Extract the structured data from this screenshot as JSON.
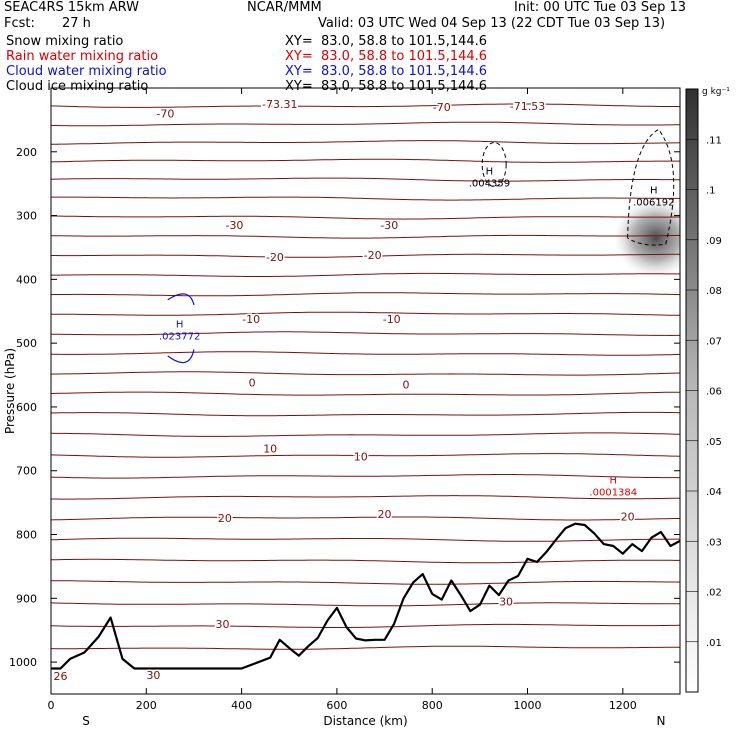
{
  "header": {
    "model": "SEAC4RS 15km ARW",
    "org": "NCAR/MMM",
    "init": "Init: 00 UTC Tue 03 Sep 13",
    "fcst_label": "Fcst:",
    "fcst_value": "27 h",
    "valid": "Valid: 03 UTC Wed 04 Sep 13 (22 CDT Tue 03 Sep 13)",
    "fields": [
      {
        "label": "Snow mixing ratio",
        "xy": "XY=  83.0, 58.8 to 101.5,144.6",
        "color": "#000000"
      },
      {
        "label": "Rain water mixing ratio",
        "xy": "XY=  83.0, 58.8 to 101.5,144.6",
        "color": "#e00000"
      },
      {
        "label": "Cloud water mixing ratio",
        "xy": "XY=  83.0, 58.8 to 101.5,144.6",
        "color": "#1010d0"
      },
      {
        "label": "Cloud ice mixing ratio",
        "xy": "XY=  83.0, 58.8 to 101.5,144.6",
        "color": "#000000"
      }
    ]
  },
  "chart_data": {
    "type": "cross-section contour",
    "xlabel": "Distance (km)",
    "ylabel": "Pressure (hPa)",
    "xlim": [
      0,
      1320
    ],
    "ylim": [
      1050,
      100
    ],
    "x_ticks": [
      0,
      200,
      400,
      600,
      800,
      1000,
      1200
    ],
    "y_ticks": [
      1000,
      900,
      800,
      700,
      600,
      500,
      400,
      300,
      200
    ],
    "x_end_labels": {
      "left": "S",
      "right": "N"
    },
    "colorbar": {
      "unit": "g kg⁻¹",
      "ticks": [
        ".01",
        ".02",
        ".03",
        ".04",
        ".05",
        ".06",
        ".07",
        ".08",
        ".09",
        ".1",
        ".11"
      ]
    },
    "contour_color": "#7a1010",
    "terrain_color": "#000000",
    "temperature_labels": [
      {
        "text": "-70",
        "x": 240,
        "p": 140
      },
      {
        "text": "-73.31",
        "x": 480,
        "p": 125
      },
      {
        "text": "-70",
        "x": 820,
        "p": 130
      },
      {
        "text": "-71.53",
        "x": 1000,
        "p": 128
      },
      {
        "text": "-30",
        "x": 385,
        "p": 315
      },
      {
        "text": "-30",
        "x": 710,
        "p": 315
      },
      {
        "text": "-20",
        "x": 470,
        "p": 365
      },
      {
        "text": "-20",
        "x": 675,
        "p": 362
      },
      {
        "text": "-10",
        "x": 420,
        "p": 462
      },
      {
        "text": "-10",
        "x": 715,
        "p": 462
      },
      {
        "text": "0",
        "x": 422,
        "p": 562
      },
      {
        "text": "0",
        "x": 745,
        "p": 565
      },
      {
        "text": "10",
        "x": 460,
        "p": 665
      },
      {
        "text": "10",
        "x": 650,
        "p": 678
      },
      {
        "text": "20",
        "x": 365,
        "p": 774
      },
      {
        "text": "20",
        "x": 700,
        "p": 768
      },
      {
        "text": "20",
        "x": 1210,
        "p": 772
      },
      {
        "text": "30",
        "x": 360,
        "p": 940
      },
      {
        "text": "30",
        "x": 955,
        "p": 905
      },
      {
        "text": "30",
        "x": 215,
        "p": 1020
      },
      {
        "text": "26",
        "x": 20,
        "p": 1022
      }
    ],
    "extrema": [
      {
        "mark": "H",
        "value": ".004359",
        "x": 920,
        "p": 240,
        "color": "#000000"
      },
      {
        "mark": "H",
        "value": ".006192",
        "x": 1265,
        "p": 270,
        "color": "#000000"
      },
      {
        "mark": "H",
        "value": ".023772",
        "x": 270,
        "p": 480,
        "color": "#1010d0"
      },
      {
        "mark": "H",
        "value": ".0001384",
        "x": 1180,
        "p": 725,
        "color": "#e00000"
      }
    ],
    "terrain": {
      "x": [
        0,
        20,
        40,
        70,
        100,
        125,
        150,
        175,
        195,
        300,
        400,
        460,
        480,
        500,
        520,
        540,
        560,
        580,
        600,
        620,
        640,
        660,
        680,
        700,
        720,
        740,
        760,
        780,
        800,
        820,
        840,
        860,
        880,
        900,
        920,
        940,
        960,
        980,
        1000,
        1020,
        1040,
        1060,
        1080,
        1100,
        1120,
        1140,
        1160,
        1180,
        1200,
        1220,
        1240,
        1260,
        1280,
        1300,
        1320
      ],
      "p": [
        1010,
        1010,
        995,
        985,
        960,
        930,
        995,
        1010,
        1010,
        1010,
        1010,
        993,
        965,
        978,
        990,
        975,
        962,
        935,
        915,
        945,
        963,
        966,
        965,
        965,
        940,
        900,
        875,
        862,
        893,
        902,
        872,
        895,
        920,
        910,
        880,
        895,
        872,
        865,
        838,
        843,
        827,
        808,
        790,
        783,
        785,
        798,
        815,
        818,
        830,
        815,
        826,
        805,
        796,
        818,
        810
      ]
    }
  }
}
